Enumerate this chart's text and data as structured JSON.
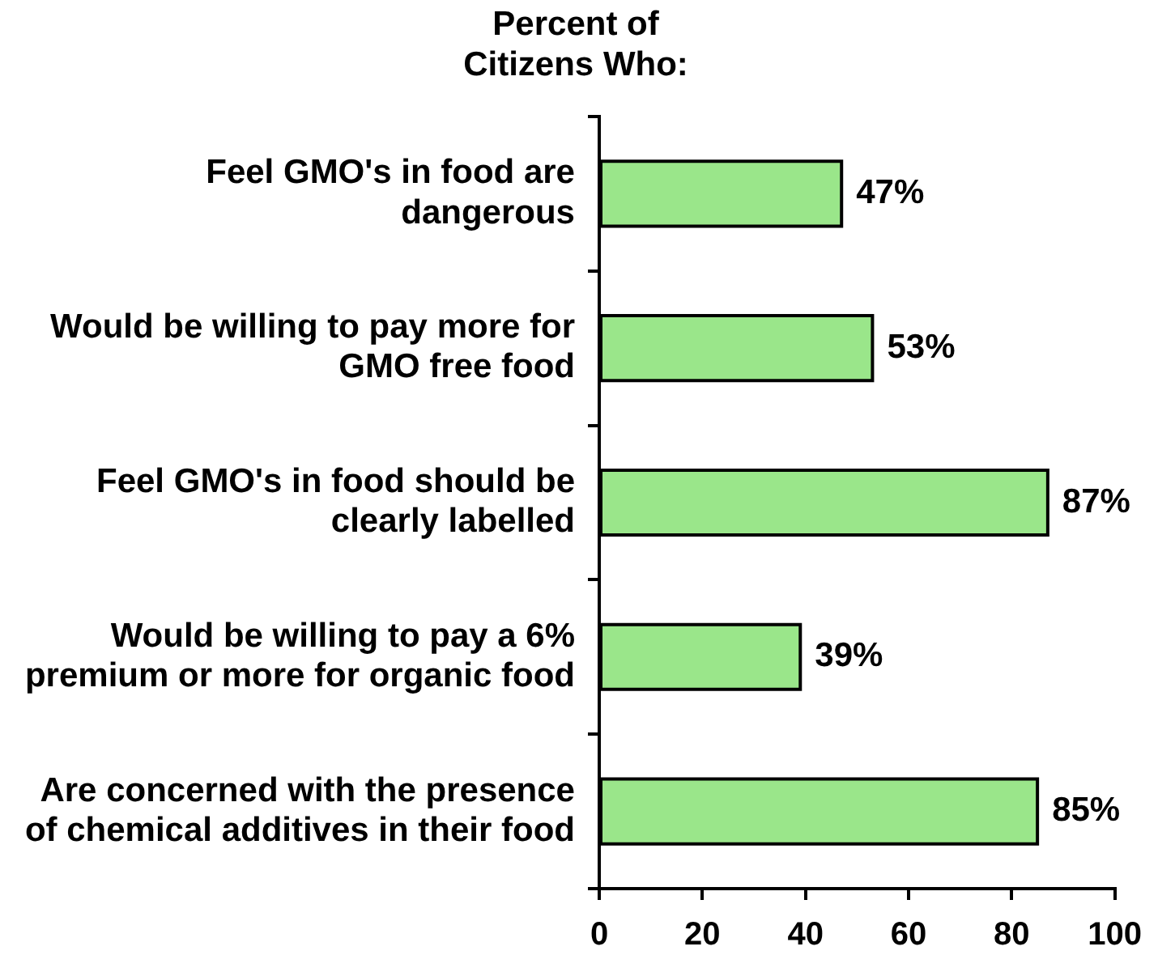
{
  "chart_data": {
    "type": "bar",
    "orientation": "horizontal",
    "title": "Percent of\nCitizens Who:",
    "categories": [
      "Feel GMO's in food are\ndangerous",
      "Would be willing to pay more for\nGMO free food",
      "Feel GMO's in food should be\nclearly labelled",
      "Would be willing to pay a 6%\npremium or more for organic food",
      "Are concerned with the presence\nof chemical additives in their food"
    ],
    "values": [
      47,
      53,
      87,
      39,
      85
    ],
    "value_labels": [
      "47%",
      "53%",
      "87%",
      "39%",
      "85%"
    ],
    "color": "#9ae68a",
    "xlim": [
      0,
      100
    ],
    "xticks": [
      0,
      20,
      40,
      60,
      80,
      100
    ],
    "grid": false,
    "legend": false
  }
}
